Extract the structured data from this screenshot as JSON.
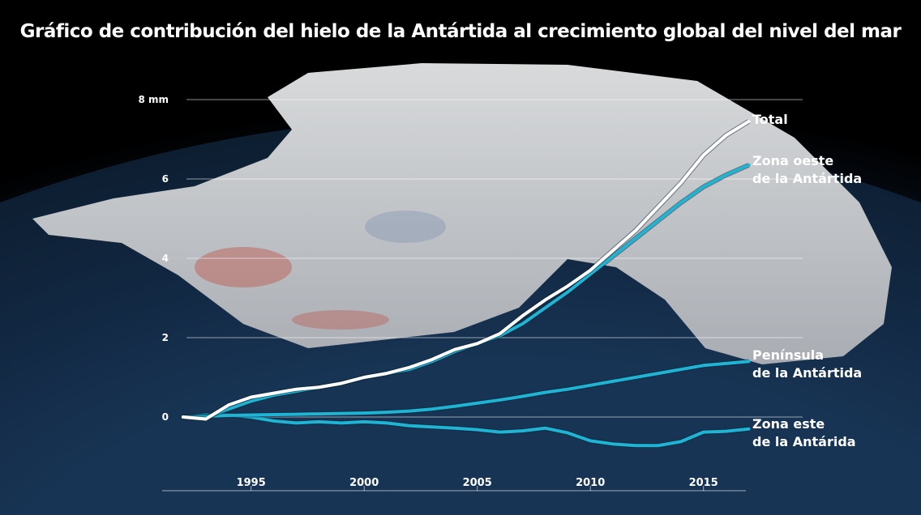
{
  "chart_data": {
    "type": "line",
    "title": "Gráfico de contribución del hielo de la Antártida al crecimiento global del nivel del mar",
    "x": [
      1992,
      1993,
      1994,
      1995,
      1996,
      1997,
      1998,
      1999,
      2000,
      2001,
      2002,
      2003,
      2004,
      2005,
      2006,
      2007,
      2008,
      2009,
      2010,
      2011,
      2012,
      2013,
      2014,
      2015,
      2016,
      2017
    ],
    "xlim": [
      1992,
      2017
    ],
    "xticks": [
      1995,
      2000,
      2005,
      2010,
      2015
    ],
    "ylim": [
      -1.8,
      8.8
    ],
    "yticks": [
      0,
      2,
      4,
      6,
      {
        "value": 8,
        "label": "8 mm"
      }
    ],
    "grid": true,
    "series": [
      {
        "name": "Total",
        "color": "#ffffff",
        "values": [
          0,
          -0.05,
          0.3,
          0.5,
          0.6,
          0.7,
          0.75,
          0.85,
          1.0,
          1.1,
          1.25,
          1.45,
          1.7,
          1.85,
          2.1,
          2.55,
          2.95,
          3.3,
          3.7,
          4.2,
          4.7,
          5.3,
          5.9,
          6.6,
          7.1,
          7.45
        ]
      },
      {
        "name": "Zona oeste\n de la Antártida",
        "color": "#1fb3d4",
        "values": [
          0,
          0,
          0.2,
          0.4,
          0.55,
          0.65,
          0.75,
          0.85,
          1.0,
          1.1,
          1.2,
          1.4,
          1.65,
          1.85,
          2.05,
          2.35,
          2.75,
          3.15,
          3.6,
          4.05,
          4.5,
          4.95,
          5.4,
          5.8,
          6.1,
          6.35
        ]
      },
      {
        "name": "Península\nde la Antártida",
        "color": "#1fb3d4",
        "values": [
          0,
          0.02,
          0.04,
          0.05,
          0.06,
          0.07,
          0.08,
          0.09,
          0.1,
          0.12,
          0.15,
          0.2,
          0.27,
          0.35,
          0.43,
          0.52,
          0.62,
          0.7,
          0.8,
          0.9,
          1.0,
          1.1,
          1.2,
          1.3,
          1.35,
          1.4
        ]
      },
      {
        "name": "Zona este\nde la Antárida",
        "color": "#1fb3d4",
        "values": [
          0,
          0.05,
          0.05,
          0,
          -0.1,
          -0.15,
          -0.12,
          -0.15,
          -0.12,
          -0.15,
          -0.22,
          -0.25,
          -0.28,
          -0.32,
          -0.38,
          -0.35,
          -0.28,
          -0.4,
          -0.6,
          -0.68,
          -0.72,
          -0.72,
          -0.62,
          -0.38,
          -0.36,
          -0.3
        ]
      }
    ]
  }
}
